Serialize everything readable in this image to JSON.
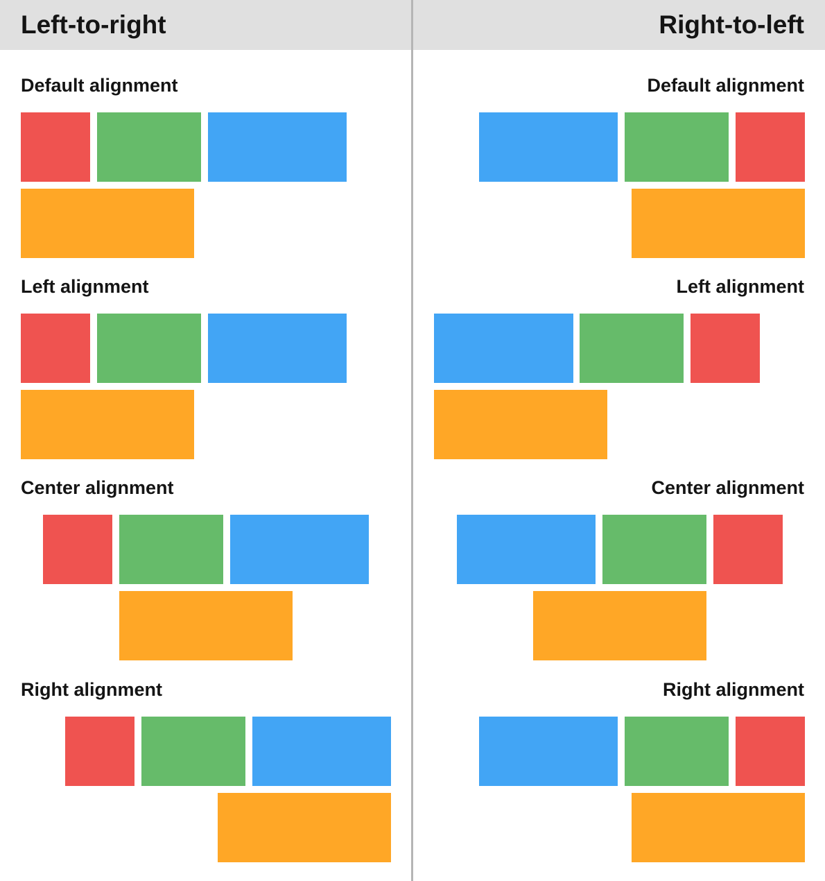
{
  "headers": {
    "left": "Left-to-right",
    "right": "Right-to-left"
  },
  "sections": [
    {
      "label": "Default alignment"
    },
    {
      "label": "Left alignment"
    },
    {
      "label": "Center alignment"
    },
    {
      "label": "Right alignment"
    }
  ],
  "colors": {
    "red": "#ef5350",
    "green": "#66bb6a",
    "blue": "#42a5f5",
    "orange": "#ffa726",
    "header_bg": "#e0e0e0",
    "divider": "#b5b5b5"
  }
}
